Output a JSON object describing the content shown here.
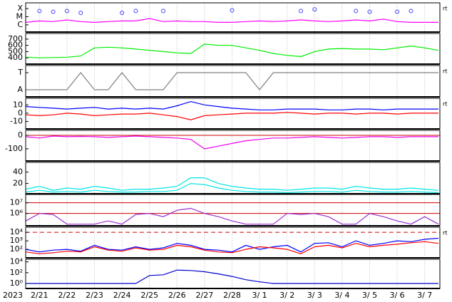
{
  "time_axis": {
    "start_label": "2023",
    "categories": [
      null,
      "2/21",
      null,
      "2/22",
      null,
      "2/23",
      null,
      "2/24",
      null,
      "2/25",
      null,
      "2/26",
      null,
      "2/27",
      null,
      "2/28",
      null,
      "3/ 1",
      null,
      "3/ 2",
      null,
      "3/ 3",
      null,
      "3/ 4",
      null,
      "3/ 5",
      null,
      "3/ 6",
      null,
      "3/ 7",
      null
    ]
  },
  "chart_data": [
    {
      "type": "line",
      "log": true,
      "ylim": [
        1.3e-07,
        0.0005
      ],
      "right_label": "rt",
      "yticks": [
        {
          "value": 0.0001,
          "label": "X"
        },
        {
          "value": 1e-05,
          "label": "M"
        },
        {
          "value": 1e-06,
          "label": "C"
        }
      ],
      "series": [
        {
          "color": "#ff00ff",
          "values": [
            2e-06,
            3e-06,
            2.5e-06,
            4e-06,
            2.5e-06,
            2e-06,
            2.5e-06,
            3e-06,
            3e-06,
            6e-06,
            2.5e-06,
            3e-06,
            2.5e-06,
            2.5e-06,
            2e-06,
            2e-06,
            2.5e-06,
            3e-06,
            2.5e-06,
            3e-06,
            4e-06,
            3e-06,
            2.5e-06,
            3e-06,
            4e-06,
            3e-06,
            5e-06,
            2.5e-06,
            2e-06,
            2e-06,
            2e-06
          ]
        },
        {
          "color": "#4040ff",
          "markers": true,
          "values": [
            null,
            5e-05,
            4e-05,
            5e-05,
            3e-05,
            null,
            null,
            3e-05,
            5e-05,
            null,
            5e-05,
            null,
            null,
            null,
            null,
            6e-05,
            null,
            null,
            null,
            null,
            5e-05,
            8e-05,
            null,
            null,
            5e-05,
            4e-05,
            null,
            4e-05,
            5e-05,
            null,
            null
          ]
        }
      ]
    },
    {
      "type": "line",
      "ylim": [
        300,
        790
      ],
      "yticks": [
        700,
        600,
        500,
        400
      ],
      "series": [
        {
          "color": "#00ee00",
          "values": [
            410,
            400,
            405,
            410,
            430,
            560,
            570,
            560,
            540,
            520,
            500,
            480,
            470,
            620,
            600,
            600,
            560,
            520,
            470,
            440,
            420,
            500,
            540,
            550,
            540,
            540,
            530,
            560,
            590,
            560,
            520
          ]
        }
      ]
    },
    {
      "type": "line",
      "ylim": [
        -0.42,
        1.42
      ],
      "right_label": "rt",
      "yticks": [
        {
          "value": 1,
          "label": "T"
        },
        {
          "value": 0,
          "label": "A"
        }
      ],
      "series": [
        {
          "color": "#808080",
          "values": [
            0,
            0,
            0,
            0,
            1,
            0,
            0,
            1,
            0,
            0,
            0,
            1,
            1,
            1,
            1,
            1,
            1,
            0,
            1,
            1,
            1,
            1,
            1,
            1,
            1,
            1,
            1,
            1,
            1,
            1,
            1
          ]
        }
      ]
    },
    {
      "type": "line",
      "ylim": [
        -19,
        18
      ],
      "yticks": [
        10,
        0,
        -10
      ],
      "right_label": "rt",
      "series": [
        {
          "color": "#0000ff",
          "values": [
            8,
            7,
            6,
            5,
            6,
            7,
            5,
            6,
            5,
            6,
            5,
            9,
            14,
            10,
            8,
            6,
            5,
            4,
            4,
            5,
            5,
            5,
            4,
            4,
            5,
            5,
            4,
            5,
            5,
            5,
            5
          ]
        },
        {
          "color": "#ff0000",
          "values": [
            -2,
            -3,
            -2,
            0,
            -1,
            -3,
            -2,
            -1,
            -1,
            0,
            -2,
            -4,
            -8,
            -3,
            -2,
            -1,
            0,
            0,
            0,
            1,
            0,
            -1,
            0,
            0,
            -1,
            0,
            0,
            -1,
            0,
            0,
            0
          ]
        }
      ]
    },
    {
      "type": "line",
      "ylim": [
        -190,
        37
      ],
      "yticks": [
        0,
        -100
      ],
      "ref_lines": [
        {
          "value": 0,
          "color": "#cc0000"
        }
      ],
      "series": [
        {
          "color": "#ee00ee",
          "values": [
            -10,
            -20,
            -5,
            -10,
            -8,
            -10,
            -15,
            -10,
            -5,
            -10,
            -15,
            -20,
            -30,
            -100,
            -80,
            -60,
            -40,
            -30,
            -20,
            -20,
            -15,
            -10,
            -15,
            -20,
            -15,
            -10,
            -10,
            -15,
            -10,
            -10,
            -10
          ]
        }
      ]
    },
    {
      "type": "line",
      "ylim": [
        2,
        57
      ],
      "yticks": [
        40,
        20
      ],
      "series": [
        {
          "color": "#00e5e5",
          "values": [
            10,
            15,
            8,
            12,
            10,
            15,
            12,
            8,
            10,
            10,
            12,
            15,
            30,
            30,
            20,
            15,
            12,
            10,
            10,
            8,
            10,
            12,
            12,
            10,
            15,
            12,
            10,
            10,
            12,
            10,
            8
          ]
        },
        {
          "color": "#00e5e5",
          "values": [
            5,
            8,
            5,
            6,
            5,
            8,
            6,
            5,
            5,
            6,
            6,
            8,
            20,
            18,
            12,
            8,
            6,
            5,
            5,
            4,
            5,
            6,
            6,
            5,
            8,
            6,
            5,
            5,
            6,
            5,
            4
          ]
        }
      ]
    },
    {
      "type": "line",
      "log": true,
      "ylim": [
        70000,
        60000000
      ],
      "yticks": [
        {
          "value": 10000000,
          "label": "10⁷"
        },
        {
          "value": 1000000,
          "label": "10⁶"
        }
      ],
      "ref_lines": [
        {
          "value": 10000000,
          "color": "#cc0000"
        },
        {
          "value": 1000000,
          "color": "#cc0000"
        }
      ],
      "series": [
        {
          "color": "#9b30d0",
          "values": [
            200000,
            1000000,
            800000,
            100000,
            100000,
            100000,
            200000,
            100000,
            800000,
            1000000,
            500000,
            2000000,
            3000000,
            1000000,
            500000,
            200000,
            100000,
            100000,
            100000,
            1000000,
            800000,
            1000000,
            500000,
            100000,
            100000,
            1000000,
            500000,
            200000,
            100000,
            500000,
            100000
          ]
        }
      ]
    },
    {
      "type": "line",
      "log": true,
      "ylim": [
        10,
        40000
      ],
      "right_label": "rt",
      "yticks": [
        {
          "value": 10000,
          "label": "10⁴"
        },
        {
          "value": 1000,
          "label": "10³"
        },
        {
          "value": 100,
          "label": "10²"
        }
      ],
      "ref_lines": [
        {
          "value": 10000,
          "color": "#cc0000",
          "dashed": true
        }
      ],
      "series": [
        {
          "color": "#0000ff",
          "values": [
            100,
            50,
            80,
            100,
            60,
            300,
            100,
            80,
            200,
            100,
            150,
            500,
            300,
            100,
            80,
            50,
            300,
            100,
            200,
            300,
            50,
            500,
            600,
            200,
            1000,
            300,
            500,
            1000,
            800,
            1500,
            2000
          ]
        },
        {
          "color": "#ff0000",
          "values": [
            50,
            30,
            40,
            60,
            50,
            200,
            80,
            60,
            150,
            80,
            100,
            300,
            200,
            80,
            50,
            40,
            100,
            200,
            150,
            100,
            30,
            200,
            300,
            150,
            500,
            200,
            300,
            400,
            600,
            800,
            500
          ]
        }
      ]
    },
    {
      "type": "line",
      "log": true,
      "ylim": [
        0.12,
        30000
      ],
      "yticks": [
        {
          "value": 10000,
          "label": "10⁴"
        },
        {
          "value": 100,
          "label": "10²"
        },
        {
          "value": 1,
          "label": "10⁰"
        }
      ],
      "series": [
        {
          "color": "#0000cc",
          "values": [
            1,
            1,
            1,
            1,
            1,
            1,
            1,
            1,
            1,
            30,
            40,
            300,
            250,
            150,
            60,
            20,
            5,
            2,
            1,
            1,
            1,
            1,
            1,
            1,
            1,
            1,
            1,
            1,
            1,
            1,
            1
          ]
        }
      ]
    }
  ]
}
